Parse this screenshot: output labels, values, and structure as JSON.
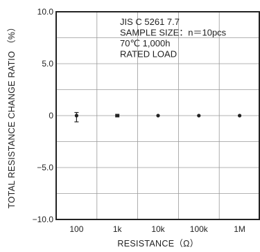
{
  "chart_data": {
    "type": "scatter",
    "xlabel": "RESISTANCE（Ω）",
    "ylabel": "TOTAL RESISTANCE CHANGE RATIO （%）",
    "x_scale": "log",
    "x_ticks": [
      {
        "value": 100,
        "label": "100"
      },
      {
        "value": 1000,
        "label": "1k"
      },
      {
        "value": 10000,
        "label": "10k"
      },
      {
        "value": 100000,
        "label": "100k"
      },
      {
        "value": 1000000,
        "label": "1M"
      }
    ],
    "ylim": [
      -10.0,
      10.0
    ],
    "y_ticks": [
      {
        "value": 10.0,
        "label": "10.0"
      },
      {
        "value": 5.0,
        "label": "5.0"
      },
      {
        "value": 0,
        "label": "0"
      },
      {
        "value": -5.0,
        "label": "−5.0"
      },
      {
        "value": -10.0,
        "label": "−10.0"
      }
    ],
    "grid": true,
    "annotation": [
      "JIS C 5261 7.7",
      "SAMPLE SIZE：n＝10pcs",
      "70℃ 1,000h",
      "RATED LOAD"
    ],
    "series": [
      {
        "points": [
          {
            "x": 100,
            "y": 0.0,
            "ymin": -0.6,
            "ymax": 0.3
          },
          {
            "x": 1000,
            "y": 0.0,
            "ymin": -0.1,
            "ymax": 0.1
          },
          {
            "x": 10000,
            "y": 0.0
          },
          {
            "x": 100000,
            "y": 0.0
          },
          {
            "x": 1000000,
            "y": 0.0
          }
        ]
      }
    ]
  }
}
